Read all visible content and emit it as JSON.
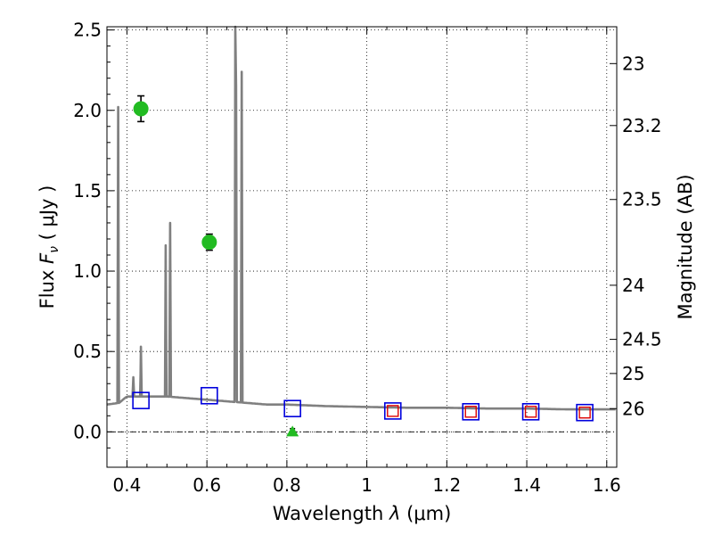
{
  "chart_data": {
    "type": "scatter",
    "xlabel_prefix": "Wavelength  ",
    "xlabel_symbol": "λ",
    "xlabel_unit": " (μm)",
    "ylabel_prefix": "Flux  ",
    "ylabel_symbol": "F",
    "ylabel_sub": "ν",
    "ylabel_unit": "  ( μJy )",
    "y2label": "Magnitude (AB)",
    "xlim": [
      0.35,
      1.625
    ],
    "ylim": [
      -0.22,
      2.52
    ],
    "x_ticks": [
      0.4,
      0.6,
      0.8,
      1.0,
      1.2,
      1.4,
      1.6
    ],
    "x_tick_labels": [
      "0.4",
      "0.6",
      "0.8",
      "1",
      "1.2",
      "1.4",
      "1.6"
    ],
    "y_ticks": [
      0.0,
      0.5,
      1.0,
      1.5,
      2.0,
      2.5
    ],
    "y_tick_labels": [
      "0.0",
      "0.5",
      "1.0",
      "1.5",
      "2.0",
      "2.5"
    ],
    "mag_ticks": [
      23,
      23.2,
      23.5,
      24,
      24.5,
      25,
      26
    ],
    "mag_tick_labels": [
      "23",
      "23.2",
      "23.5",
      "24",
      "24.5",
      "25",
      "26"
    ],
    "grid": true,
    "zero_line": true,
    "colors": {
      "sed": "#808080",
      "observed": "#22bb22",
      "model_blue": "#0000dd",
      "model_red": "#dd0000",
      "errorbar": "#000000"
    },
    "sed_continuum": [
      [
        0.35,
        0.17
      ],
      [
        0.38,
        0.18
      ],
      [
        0.4,
        0.22
      ],
      [
        0.45,
        0.22
      ],
      [
        0.5,
        0.22
      ],
      [
        0.55,
        0.21
      ],
      [
        0.6,
        0.2
      ],
      [
        0.65,
        0.19
      ],
      [
        0.7,
        0.18
      ],
      [
        0.75,
        0.17
      ],
      [
        0.8,
        0.17
      ],
      [
        0.9,
        0.16
      ],
      [
        1.0,
        0.155
      ],
      [
        1.1,
        0.15
      ],
      [
        1.2,
        0.15
      ],
      [
        1.3,
        0.145
      ],
      [
        1.4,
        0.145
      ],
      [
        1.5,
        0.14
      ],
      [
        1.625,
        0.14
      ]
    ],
    "emission_lines": [
      {
        "x": 0.378,
        "peak": 2.02
      },
      {
        "x": 0.416,
        "peak": 0.34
      },
      {
        "x": 0.435,
        "peak": 0.53
      },
      {
        "x": 0.497,
        "peak": 1.16
      },
      {
        "x": 0.508,
        "peak": 1.3
      },
      {
        "x": 0.671,
        "peak": 2.52
      },
      {
        "x": 0.673,
        "peak": 2.15
      },
      {
        "x": 0.687,
        "peak": 2.24
      }
    ],
    "observed_points": [
      {
        "x": 0.435,
        "y": 2.01,
        "err": 0.08
      },
      {
        "x": 0.606,
        "y": 1.18,
        "err": 0.05
      }
    ],
    "upper_limits": [
      {
        "x": 0.814,
        "y": 0.0,
        "err": 0.02
      }
    ],
    "model_points": [
      {
        "x": 0.435,
        "y": 0.195,
        "red": false
      },
      {
        "x": 0.606,
        "y": 0.225,
        "red": false
      },
      {
        "x": 0.814,
        "y": 0.145,
        "red": false
      },
      {
        "x": 1.065,
        "y": 0.13,
        "red": true
      },
      {
        "x": 1.26,
        "y": 0.125,
        "red": true
      },
      {
        "x": 1.41,
        "y": 0.125,
        "red": true
      },
      {
        "x": 1.545,
        "y": 0.12,
        "red": true
      }
    ]
  }
}
